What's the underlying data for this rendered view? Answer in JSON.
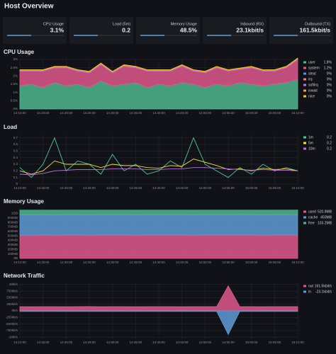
{
  "title": "Host Overview",
  "stats": [
    {
      "label": "CPU Usage",
      "value": "3.1%"
    },
    {
      "label": "Load (5m)",
      "value": "0.2"
    },
    {
      "label": "Memory Usage",
      "value": "48.5%"
    },
    {
      "label": "Inbound (RX)",
      "value": "23.1kbit/s"
    },
    {
      "label": "Outbound (TX)",
      "value": "161.5kbit/s"
    }
  ],
  "chart_data": [
    {
      "type": "area",
      "title": "CPU Usage",
      "stacked": true,
      "grid": true,
      "legend": "right",
      "x": [
        "14:10:00",
        "14:12:30",
        "14:15:00",
        "14:17:30",
        "14:20:00",
        "14:22:30",
        "14:25:00",
        "14:27:30",
        "14:30:00",
        "14:32:30",
        "14:35:00",
        "14:37:30",
        "14:40:00",
        "14:42:30",
        "14:45:00",
        "14:47:30",
        "14:50:00",
        "14:52:30",
        "14:55:00",
        "14:57:30",
        "15:00:00",
        "15:02:30",
        "15:05:00",
        "15:07:30",
        "15:10:00"
      ],
      "xlim": [
        "14:10:00",
        "15:10:00"
      ],
      "xticks": [
        "14:10:00",
        "14:15:00",
        "14:20:00",
        "14:25:00",
        "14:30:00",
        "14:35:00",
        "14:40:00",
        "14:45:00",
        "14:50:00",
        "14:55:00",
        "15:00:00",
        "15:05:00",
        "15:10:00"
      ],
      "ylim": [
        0,
        3
      ],
      "yticks": [
        {
          "value": 0,
          "label": "0%"
        },
        {
          "value": 0.5,
          "label": "0.5%"
        },
        {
          "value": 1,
          "label": "1%"
        },
        {
          "value": 1.5,
          "label": "1.5%"
        },
        {
          "value": 2,
          "label": "2%"
        },
        {
          "value": 2.5,
          "label": "2.5%"
        },
        {
          "value": 3,
          "label": "3%"
        }
      ],
      "series": [
        {
          "name": "user",
          "color": "#4fb88f",
          "last": "1.8%",
          "values": [
            1.4,
            1.5,
            1.3,
            1.6,
            1.4,
            1.5,
            1.3,
            1.7,
            1.4,
            1.5,
            1.6,
            1.3,
            1.5,
            1.4,
            1.6,
            1.5,
            1.3,
            1.5,
            1.4,
            1.6,
            1.5,
            1.4,
            1.5,
            1.6,
            1.8
          ]
        },
        {
          "name": "system",
          "color": "#e0588c",
          "last": "1.2%",
          "values": [
            0.9,
            0.8,
            1.0,
            0.9,
            1.1,
            0.8,
            0.9,
            1.0,
            0.8,
            1.1,
            0.9,
            1.0,
            0.8,
            0.9,
            1.0,
            0.8,
            0.9,
            1.0,
            0.9,
            0.8,
            1.0,
            0.9,
            0.8,
            0.9,
            1.2
          ]
        },
        {
          "name": "steal",
          "color": "#5794f2",
          "last": "0%",
          "values": [
            0,
            0,
            0,
            0,
            0,
            0,
            0,
            0,
            0,
            0,
            0,
            0,
            0,
            0,
            0,
            0,
            0,
            0,
            0,
            0,
            0,
            0,
            0,
            0,
            0
          ]
        },
        {
          "name": "irq",
          "color": "#ff7383",
          "last": "0%",
          "values": [
            0,
            0,
            0,
            0,
            0,
            0,
            0,
            0,
            0,
            0,
            0,
            0,
            0,
            0,
            0,
            0,
            0,
            0,
            0,
            0,
            0,
            0,
            0,
            0,
            0
          ]
        },
        {
          "name": "softirq",
          "color": "#b877d9",
          "last": "0%",
          "values": [
            0.05,
            0.05,
            0.05,
            0.05,
            0.05,
            0.05,
            0.05,
            0.05,
            0.05,
            0.05,
            0.05,
            0.05,
            0.05,
            0.05,
            0.05,
            0.05,
            0.05,
            0.05,
            0.05,
            0.05,
            0.05,
            0.05,
            0.05,
            0.05,
            0.05
          ]
        },
        {
          "name": "iowait",
          "color": "#ff9830",
          "last": "0%",
          "values": [
            0.03,
            0.03,
            0.03,
            0.03,
            0.03,
            0.03,
            0.03,
            0.03,
            0.03,
            0.03,
            0.03,
            0.03,
            0.03,
            0.03,
            0.03,
            0.03,
            0.03,
            0.03,
            0.03,
            0.03,
            0.03,
            0.03,
            0.03,
            0.03,
            0.03
          ]
        },
        {
          "name": "nice",
          "color": "#f2cc0c",
          "last": "0%",
          "values": [
            0,
            0,
            0,
            0,
            0,
            0,
            0,
            0,
            0,
            0,
            0,
            0,
            0,
            0,
            0,
            0,
            0,
            0,
            0,
            0,
            0,
            0,
            0,
            0,
            0
          ]
        }
      ]
    },
    {
      "type": "line",
      "title": "Load",
      "grid": true,
      "legend": "right",
      "x": [
        "14:10:00",
        "14:12:30",
        "14:15:00",
        "14:17:30",
        "14:20:00",
        "14:22:30",
        "14:25:00",
        "14:27:30",
        "14:30:00",
        "14:32:30",
        "14:35:00",
        "14:37:30",
        "14:40:00",
        "14:42:30",
        "14:45:00",
        "14:47:30",
        "14:50:00",
        "14:52:30",
        "14:55:00",
        "14:57:30",
        "15:00:00",
        "15:02:30",
        "15:05:00",
        "15:07:30",
        "15:10:00"
      ],
      "xlim": [
        "14:10:00",
        "15:10:00"
      ],
      "xticks": [
        "14:10:00",
        "14:15:00",
        "14:20:00",
        "14:25:00",
        "14:30:00",
        "14:35:00",
        "14:40:00",
        "14:45:00",
        "14:50:00",
        "14:55:00",
        "15:00:00",
        "15:05:00",
        "15:10:00"
      ],
      "ylim": [
        0,
        0.75
      ],
      "yticks": [
        0,
        0.1,
        0.2,
        0.3,
        0.4,
        0.5,
        0.6,
        0.7
      ],
      "series": [
        {
          "name": "1m",
          "color": "#56c4a0",
          "last": "0.2",
          "values": [
            0.25,
            0.1,
            0.3,
            0.7,
            0.2,
            0.35,
            0.3,
            0.15,
            0.45,
            0.2,
            0.3,
            0.15,
            0.2,
            0.35,
            0.25,
            0.7,
            0.3,
            0.2,
            0.1,
            0.25,
            0.15,
            0.3,
            0.2,
            0.25,
            0.2
          ]
        },
        {
          "name": "5m",
          "color": "#fade2a",
          "last": "0.2",
          "values": [
            0.2,
            0.15,
            0.2,
            0.35,
            0.3,
            0.3,
            0.3,
            0.25,
            0.3,
            0.28,
            0.28,
            0.25,
            0.24,
            0.28,
            0.27,
            0.38,
            0.33,
            0.28,
            0.22,
            0.23,
            0.2,
            0.24,
            0.22,
            0.23,
            0.2
          ]
        },
        {
          "name": "10m",
          "color": "#b877d9",
          "last": "0.2",
          "values": [
            0.15,
            0.14,
            0.16,
            0.2,
            0.21,
            0.22,
            0.22,
            0.22,
            0.23,
            0.23,
            0.23,
            0.22,
            0.22,
            0.23,
            0.23,
            0.25,
            0.25,
            0.24,
            0.23,
            0.22,
            0.21,
            0.22,
            0.21,
            0.21,
            0.2
          ]
        }
      ]
    },
    {
      "type": "area",
      "title": "Memory Usage",
      "stacked": true,
      "grid": true,
      "legend": "right",
      "x": [
        "14:10:00",
        "14:12:30",
        "14:15:00",
        "14:17:30",
        "14:20:00",
        "14:22:30",
        "14:25:00",
        "14:27:30",
        "14:30:00",
        "14:32:30",
        "14:35:00",
        "14:37:30",
        "14:40:00",
        "14:42:30",
        "14:45:00",
        "14:47:30",
        "14:50:00",
        "14:52:30",
        "14:55:00",
        "14:57:30",
        "15:00:00",
        "15:02:30",
        "15:05:00",
        "15:07:30",
        "15:10:00"
      ],
      "xlim": [
        "14:10:00",
        "15:10:00"
      ],
      "xticks": [
        "14:10:00",
        "14:15:00",
        "14:20:00",
        "14:25:00",
        "14:30:00",
        "14:35:00",
        "14:40:00",
        "14:45:00",
        "14:50:00",
        "14:55:00",
        "15:00:00",
        "15:05:00",
        "15:10:00"
      ],
      "ylim": [
        0,
        1100
      ],
      "yticks": [
        {
          "value": 0,
          "label": "0B"
        },
        {
          "value": 100,
          "label": "100MB"
        },
        {
          "value": 200,
          "label": "200MB"
        },
        {
          "value": 300,
          "label": "300MB"
        },
        {
          "value": 400,
          "label": "400MB"
        },
        {
          "value": 500,
          "label": "500MB"
        },
        {
          "value": 600,
          "label": "600MB"
        },
        {
          "value": 700,
          "label": "700MB"
        },
        {
          "value": 800,
          "label": "800MB"
        },
        {
          "value": 900,
          "label": "900MB"
        },
        {
          "value": 1000,
          "label": "1GB"
        }
      ],
      "series": [
        {
          "name": "used",
          "color": "#e0588c",
          "last": "520.8MB",
          "values": [
            518,
            519,
            520,
            518,
            521,
            520,
            519,
            520,
            521,
            520,
            519,
            520,
            521,
            520,
            520,
            519,
            521,
            520,
            520,
            521,
            520,
            519,
            520,
            521,
            520.8
          ]
        },
        {
          "name": "cache",
          "color": "#5f9bd6",
          "last": "450MB",
          "values": [
            450,
            450,
            450,
            450,
            450,
            450,
            450,
            450,
            450,
            450,
            450,
            450,
            450,
            450,
            450,
            450,
            450,
            450,
            450,
            450,
            450,
            450,
            450,
            450,
            450
          ]
        },
        {
          "name": "free",
          "color": "#4fb88f",
          "last": "103.2MB",
          "values": [
            105,
            104,
            103,
            105,
            102,
            103,
            104,
            103,
            102,
            103,
            104,
            103,
            102,
            103,
            103,
            104,
            102,
            103,
            103,
            102,
            103,
            104,
            103,
            102,
            103.2
          ]
        }
      ]
    },
    {
      "type": "area",
      "title": "Network Traffic",
      "stacked": false,
      "grid": true,
      "legend": "right",
      "x": [
        "14:10:00",
        "14:12:30",
        "14:15:00",
        "14:17:30",
        "14:20:00",
        "14:22:30",
        "14:25:00",
        "14:27:30",
        "14:30:00",
        "14:32:30",
        "14:35:00",
        "14:37:30",
        "14:40:00",
        "14:42:30",
        "14:45:00",
        "14:47:30",
        "14:50:00",
        "14:52:30",
        "14:55:00",
        "14:57:30",
        "15:00:00",
        "15:02:30",
        "15:05:00",
        "15:07:30",
        "15:10:00"
      ],
      "xlim": [
        "14:10:00",
        "15:10:00"
      ],
      "xticks": [
        "14:10:00",
        "14:15:00",
        "14:20:00",
        "14:25:00",
        "14:30:00",
        "14:35:00",
        "14:40:00",
        "14:45:00",
        "14:50:00",
        "14:55:00",
        "15:00:00",
        "15:05:00",
        "15:10:00"
      ],
      "ylim": [
        -1050,
        1050
      ],
      "yticks": [
        {
          "value": -1000,
          "label": "-1Mb/s"
        },
        {
          "value": -750,
          "label": "-750kb/s"
        },
        {
          "value": -500,
          "label": "-500kb/s"
        },
        {
          "value": -250,
          "label": "-250kb/s"
        },
        {
          "value": 0,
          "label": "0b/s"
        },
        {
          "value": 250,
          "label": "250kb/s"
        },
        {
          "value": 500,
          "label": "500kb/s"
        },
        {
          "value": 750,
          "label": "750kb/s"
        },
        {
          "value": 1000,
          "label": "1Mb/s"
        }
      ],
      "series": [
        {
          "name": "out",
          "color": "#e0588c",
          "last": "161.5kbit/s",
          "values": [
            160,
            158,
            162,
            161,
            159,
            160,
            163,
            158,
            160,
            161,
            159,
            162,
            160,
            161,
            158,
            160,
            162,
            160,
            950,
            161,
            160,
            159,
            162,
            160,
            161.5
          ]
        },
        {
          "name": "in",
          "color": "#5f9bd6",
          "last": "-23.1kbit/s",
          "values": [
            -23,
            -22,
            -24,
            -23,
            -23,
            -22,
            -24,
            -23,
            -23,
            -22,
            -24,
            -23,
            -23,
            -22,
            -24,
            -23,
            -23,
            -22,
            -900,
            -23,
            -23,
            -22,
            -24,
            -23,
            -23.1
          ]
        }
      ]
    }
  ]
}
